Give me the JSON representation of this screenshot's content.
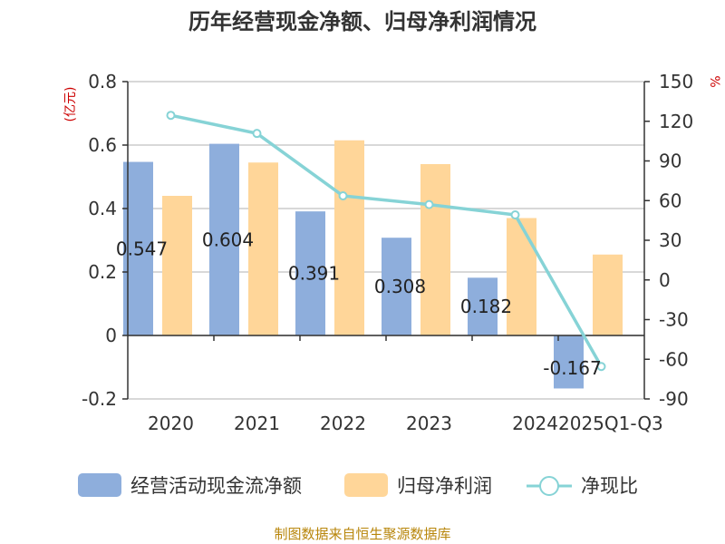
{
  "chart_data": {
    "type": "bar",
    "title": "历年经营现金净额、归母净利润情况",
    "left_axis_unit": "(亿元)",
    "right_axis_unit": "%",
    "categories": [
      "2020",
      "2021",
      "2022",
      "2023",
      "2024",
      "2025Q1-Q3"
    ],
    "ylim_left": [
      -0.2,
      0.8
    ],
    "yticks_left": [
      "-0.2",
      "0",
      "0.2",
      "0.4",
      "0.6",
      "0.8"
    ],
    "ylim_right": [
      -90,
      150
    ],
    "yticks_right": [
      "-90",
      "-60",
      "-30",
      "0",
      "30",
      "60",
      "90",
      "120",
      "150"
    ],
    "grid": true,
    "legend_position": "bottom",
    "series": [
      {
        "name": "经营活动现金流净额",
        "type": "bar",
        "axis": "left",
        "color": "#8eaedc",
        "values": [
          0.547,
          0.604,
          0.391,
          0.308,
          0.182,
          -0.167
        ],
        "labels": [
          "0.547",
          "0.604",
          "0.391",
          "0.308",
          "0.182",
          "-0.167"
        ]
      },
      {
        "name": "归母净利润",
        "type": "bar",
        "axis": "left",
        "color": "#ffd699",
        "values": [
          0.44,
          0.545,
          0.615,
          0.54,
          0.37,
          0.255
        ]
      },
      {
        "name": "净现比",
        "type": "line",
        "axis": "right",
        "color": "#86d3d6",
        "values": [
          124.5,
          110.8,
          63.6,
          57.0,
          49.2,
          -65.5
        ]
      }
    ],
    "source": "制图数据来自恒生聚源数据库"
  }
}
